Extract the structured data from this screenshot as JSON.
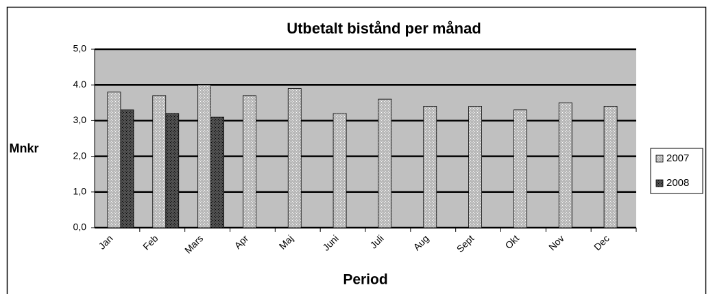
{
  "chart_data": {
    "type": "bar",
    "title": "Utbetalt bistånd per månad",
    "y_label": "Mnkr",
    "x_label": "Period",
    "categories": [
      "Jan",
      "Feb",
      "Mars",
      "Apr",
      "Maj",
      "Juni",
      "Juli",
      "Aug",
      "Sept",
      "Okt",
      "Nov",
      "Dec"
    ],
    "series": [
      {
        "name": "2007",
        "color": "#b8b8b8",
        "values": [
          3.8,
          3.7,
          4.0,
          3.7,
          3.9,
          3.2,
          3.6,
          3.4,
          3.4,
          3.3,
          3.5,
          3.4
        ]
      },
      {
        "name": "2008",
        "color": "#505050",
        "values": [
          3.3,
          3.2,
          3.1,
          null,
          null,
          null,
          null,
          null,
          null,
          null,
          null,
          null
        ]
      }
    ],
    "ylim": [
      0,
      5
    ],
    "yticks": [
      {
        "value": 0,
        "label": "0,0"
      },
      {
        "value": 1,
        "label": "1,0"
      },
      {
        "value": 2,
        "label": "2,0"
      },
      {
        "value": 3,
        "label": "3,0"
      },
      {
        "value": 4,
        "label": "4.0"
      },
      {
        "value": 5,
        "label": "5,0"
      }
    ],
    "grid": true,
    "plot_background": "#c0c0c0",
    "legend": "right"
  }
}
